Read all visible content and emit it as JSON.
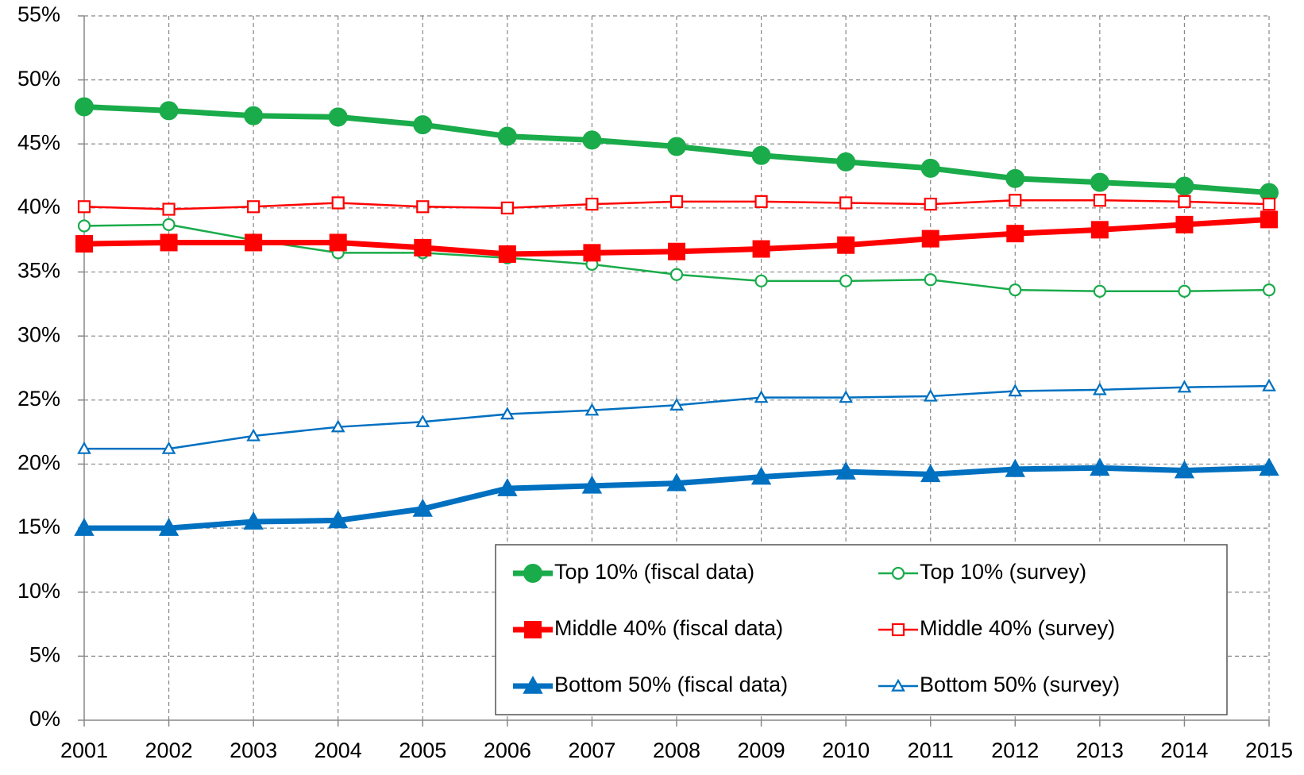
{
  "chart_data": {
    "type": "line",
    "x": [
      2001,
      2002,
      2003,
      2004,
      2005,
      2006,
      2007,
      2008,
      2009,
      2010,
      2011,
      2012,
      2013,
      2014,
      2015
    ],
    "xlim": [
      2001,
      2015
    ],
    "xticks": [
      2001,
      2002,
      2003,
      2004,
      2005,
      2006,
      2007,
      2008,
      2009,
      2010,
      2011,
      2012,
      2013,
      2014,
      2015
    ],
    "ylim": [
      0,
      55
    ],
    "yticks": [
      {
        "value": 0,
        "label": "0%"
      },
      {
        "value": 5,
        "label": "5%"
      },
      {
        "value": 10,
        "label": "10%"
      },
      {
        "value": 15,
        "label": "15%"
      },
      {
        "value": 20,
        "label": "20%"
      },
      {
        "value": 25,
        "label": "25%"
      },
      {
        "value": 30,
        "label": "30%"
      },
      {
        "value": 35,
        "label": "35%"
      },
      {
        "value": 40,
        "label": "40%"
      },
      {
        "value": 45,
        "label": "45%"
      },
      {
        "value": 50,
        "label": "50%"
      },
      {
        "value": 55,
        "label": "55%"
      }
    ],
    "grid": true,
    "legend": "bottom-right",
    "series": [
      {
        "name": "Top 10% (fiscal data)",
        "color": "#1aab4a",
        "marker": "circle",
        "style": "thick",
        "values": [
          47.9,
          47.6,
          47.2,
          47.1,
          46.5,
          45.6,
          45.3,
          44.8,
          44.1,
          43.6,
          43.1,
          42.3,
          42.0,
          41.7,
          41.2
        ]
      },
      {
        "name": "Top 10% (survey)",
        "color": "#1aab4a",
        "marker": "circle",
        "style": "thin",
        "values": [
          38.6,
          38.7,
          37.5,
          36.5,
          36.5,
          36.1,
          35.6,
          34.8,
          34.3,
          34.3,
          34.4,
          33.6,
          33.5,
          33.5,
          33.6
        ]
      },
      {
        "name": "Middle 40% (fiscal data)",
        "color": "#ff0000",
        "marker": "square",
        "style": "thick",
        "values": [
          37.2,
          37.3,
          37.3,
          37.3,
          36.9,
          36.4,
          36.5,
          36.6,
          36.8,
          37.1,
          37.6,
          38.0,
          38.3,
          38.7,
          39.1
        ]
      },
      {
        "name": "Middle 40% (survey)",
        "color": "#ff0000",
        "marker": "square",
        "style": "thin",
        "values": [
          40.1,
          39.9,
          40.1,
          40.4,
          40.1,
          40.0,
          40.3,
          40.5,
          40.5,
          40.4,
          40.3,
          40.6,
          40.6,
          40.5,
          40.3
        ]
      },
      {
        "name": "Bottom 50% (fiscal data)",
        "color": "#0070c0",
        "marker": "triangle",
        "style": "thick",
        "values": [
          15.0,
          15.0,
          15.5,
          15.6,
          16.5,
          18.1,
          18.3,
          18.5,
          19.0,
          19.4,
          19.2,
          19.6,
          19.7,
          19.5,
          19.7
        ]
      },
      {
        "name": "Bottom 50% (survey)",
        "color": "#0070c0",
        "marker": "triangle",
        "style": "thin",
        "values": [
          21.2,
          21.2,
          22.2,
          22.9,
          23.3,
          23.9,
          24.2,
          24.6,
          25.2,
          25.2,
          25.3,
          25.7,
          25.8,
          26.0,
          26.1
        ]
      }
    ]
  }
}
